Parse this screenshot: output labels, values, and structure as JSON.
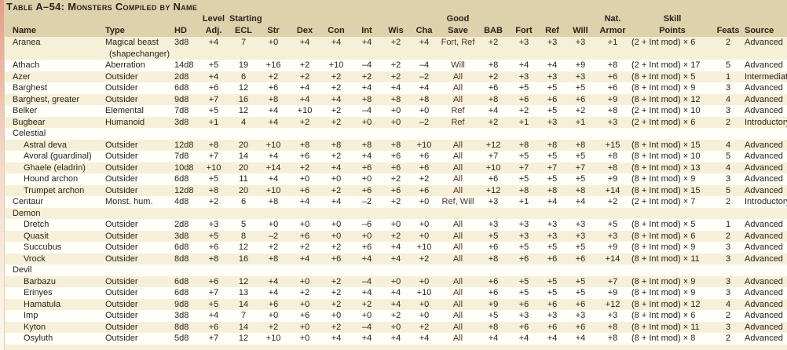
{
  "page": {
    "background_color": "#ded2ac",
    "row_cream_color": "#f7f0d9",
    "row_white_color": "#fffef8",
    "text_color": "#29221a"
  },
  "table": {
    "title": "Table A–54: Monsters Compiled by Name",
    "columns": [
      {
        "id": "name",
        "group": "",
        "label": "Name",
        "align": "left"
      },
      {
        "id": "type",
        "group": "",
        "label": "Type",
        "align": "left"
      },
      {
        "id": "hd",
        "group": "",
        "label": "HD",
        "align": "left"
      },
      {
        "id": "level_adj",
        "group": "Level",
        "label": "Adj.",
        "align": "center"
      },
      {
        "id": "ecl",
        "group": "Starting",
        "label": "ECL",
        "align": "center"
      },
      {
        "id": "str",
        "group": "",
        "label": "Str",
        "align": "center"
      },
      {
        "id": "dex",
        "group": "",
        "label": "Dex",
        "align": "center"
      },
      {
        "id": "con",
        "group": "",
        "label": "Con",
        "align": "center"
      },
      {
        "id": "int",
        "group": "",
        "label": "Int",
        "align": "center"
      },
      {
        "id": "wis",
        "group": "",
        "label": "Wis",
        "align": "center"
      },
      {
        "id": "cha",
        "group": "",
        "label": "Cha",
        "align": "center"
      },
      {
        "id": "save",
        "group": "Good",
        "label": "Save",
        "align": "center"
      },
      {
        "id": "bab",
        "group": "",
        "label": "BAB",
        "align": "center"
      },
      {
        "id": "fort",
        "group": "",
        "label": "Fort",
        "align": "center"
      },
      {
        "id": "ref",
        "group": "",
        "label": "Ref",
        "align": "center"
      },
      {
        "id": "will",
        "group": "",
        "label": "Will",
        "align": "center"
      },
      {
        "id": "nat_armor",
        "group": "Nat.",
        "label": "Armor",
        "align": "center"
      },
      {
        "id": "skill_points",
        "group": "Skill",
        "label": "Points",
        "align": "center"
      },
      {
        "id": "feats",
        "group": "",
        "label": "Feats",
        "align": "center"
      },
      {
        "id": "source",
        "group": "",
        "label": "Source",
        "align": "left"
      }
    ],
    "rows": [
      {
        "kind": "data",
        "name": "Aranea",
        "indent": false,
        "type": "Magical beast",
        "type2": "(shapechanger)",
        "hd": "3d8",
        "level_adj": "+4",
        "ecl": "7",
        "str": "+0",
        "dex": "+4",
        "con": "+4",
        "int": "+4",
        "wis": "+2",
        "cha": "+4",
        "save": "Fort, Ref",
        "bab": "+2",
        "fort": "+3",
        "ref": "+3",
        "will": "+3",
        "nat_armor": "+1",
        "skill_points": "(2 + Int mod) × 6",
        "feats": "2",
        "source": "Advanced"
      },
      {
        "kind": "data",
        "name": "Athach",
        "indent": false,
        "type": "Aberration",
        "hd": "14d8",
        "level_adj": "+5",
        "ecl": "19",
        "str": "+16",
        "dex": "+2",
        "con": "+10",
        "int": "–4",
        "wis": "+2",
        "cha": "–4",
        "save": "Will",
        "bab": "+8",
        "fort": "+4",
        "ref": "+4",
        "will": "+9",
        "nat_armor": "+8",
        "skill_points": "(2 + Int mod) × 17",
        "feats": "5",
        "source": "Advanced"
      },
      {
        "kind": "data",
        "name": "Azer",
        "indent": false,
        "type": "Outsider",
        "hd": "2d8",
        "level_adj": "+4",
        "ecl": "6",
        "str": "+2",
        "dex": "+2",
        "con": "+2",
        "int": "+2",
        "wis": "+2",
        "cha": "–2",
        "save": "All",
        "bab": "+2",
        "fort": "+3",
        "ref": "+3",
        "will": "+3",
        "nat_armor": "+6",
        "skill_points": "(8 + Int mod) × 5",
        "feats": "1",
        "source": "Intermediate"
      },
      {
        "kind": "data",
        "name": "Barghest",
        "indent": false,
        "type": "Outsider",
        "hd": "6d8",
        "level_adj": "+6",
        "ecl": "12",
        "str": "+6",
        "dex": "+4",
        "con": "+2",
        "int": "+4",
        "wis": "+4",
        "cha": "+4",
        "save": "All",
        "bab": "+6",
        "fort": "+5",
        "ref": "+5",
        "will": "+5",
        "nat_armor": "+6",
        "skill_points": "(8 + Int mod) × 9",
        "feats": "3",
        "source": "Advanced"
      },
      {
        "kind": "data",
        "name": "Barghest, greater",
        "indent": false,
        "type": "Outsider",
        "hd": "9d8",
        "level_adj": "+7",
        "ecl": "16",
        "str": "+8",
        "dex": "+4",
        "con": "+4",
        "int": "+8",
        "wis": "+8",
        "cha": "+8",
        "save": "All",
        "bab": "+8",
        "fort": "+6",
        "ref": "+6",
        "will": "+6",
        "nat_armor": "+9",
        "skill_points": "(8 + Int mod) × 12",
        "feats": "4",
        "source": "Advanced"
      },
      {
        "kind": "data",
        "name": "Belker",
        "indent": false,
        "type": "Elemental",
        "hd": "7d8",
        "level_adj": "+5",
        "ecl": "12",
        "str": "+4",
        "dex": "+10",
        "con": "+2",
        "int": "–4",
        "wis": "+0",
        "cha": "+0",
        "save": "Ref",
        "bab": "+4",
        "fort": "+2",
        "ref": "+5",
        "will": "+2",
        "nat_armor": "+8",
        "skill_points": "(2 + Int mod) × 10",
        "feats": "3",
        "source": "Advanced"
      },
      {
        "kind": "data",
        "name": "Bugbear",
        "indent": false,
        "type": "Humanoid",
        "hd": "3d8",
        "level_adj": "+1",
        "ecl": "4",
        "str": "+4",
        "dex": "+2",
        "con": "+2",
        "int": "+0",
        "wis": "+0",
        "cha": "–2",
        "save": "Ref",
        "bab": "+2",
        "fort": "+1",
        "ref": "+3",
        "will": "+1",
        "nat_armor": "+3",
        "skill_points": "(2 + Int mod) × 6",
        "feats": "2",
        "source": "Introductory"
      },
      {
        "kind": "section",
        "name": "Celestial"
      },
      {
        "kind": "data",
        "name": "Astral deva",
        "indent": true,
        "type": "Outsider",
        "hd": "12d8",
        "level_adj": "+8",
        "ecl": "20",
        "str": "+10",
        "dex": "+8",
        "con": "+8",
        "int": "+8",
        "wis": "+8",
        "cha": "+10",
        "save": "All",
        "bab": "+12",
        "fort": "+8",
        "ref": "+8",
        "will": "+8",
        "nat_armor": "+15",
        "skill_points": "(8 + Int mod) × 15",
        "feats": "4",
        "source": "Advanced"
      },
      {
        "kind": "data",
        "name": "Avoral (guardinal)",
        "indent": true,
        "type": "Outsider",
        "hd": "7d8",
        "level_adj": "+7",
        "ecl": "14",
        "str": "+4",
        "dex": "+6",
        "con": "+2",
        "int": "+4",
        "wis": "+6",
        "cha": "+6",
        "save": "All",
        "bab": "+7",
        "fort": "+5",
        "ref": "+5",
        "will": "+5",
        "nat_armor": "+8",
        "skill_points": "(8 + Int mod) × 10",
        "feats": "5",
        "source": "Advanced"
      },
      {
        "kind": "data",
        "name": "Ghaele (eladrin)",
        "indent": true,
        "type": "Outsider",
        "hd": "10d8",
        "level_adj": "+10",
        "ecl": "20",
        "str": "+14",
        "dex": "+2",
        "con": "+4",
        "int": "+6",
        "wis": "+6",
        "cha": "+6",
        "save": "All",
        "bab": "+10",
        "fort": "+7",
        "ref": "+7",
        "will": "+7",
        "nat_armor": "+8",
        "skill_points": "(8 + Int mod) × 13",
        "feats": "4",
        "source": "Advanced"
      },
      {
        "kind": "data",
        "name": "Hound archon",
        "indent": true,
        "type": "Outsider",
        "hd": "6d8",
        "level_adj": "+5",
        "ecl": "11",
        "str": "+4",
        "dex": "+0",
        "con": "+0",
        "int": "+0",
        "wis": "+2",
        "cha": "+2",
        "save": "All",
        "bab": "+6",
        "fort": "+5",
        "ref": "+5",
        "will": "+5",
        "nat_armor": "+9",
        "skill_points": "(8 + Int mod) × 9",
        "feats": "3",
        "source": "Advanced"
      },
      {
        "kind": "data",
        "name": "Trumpet archon",
        "indent": true,
        "type": "Outsider",
        "hd": "12d8",
        "level_adj": "+8",
        "ecl": "20",
        "str": "+10",
        "dex": "+6",
        "con": "+2",
        "int": "+6",
        "wis": "+6",
        "cha": "+6",
        "save": "All",
        "bab": "+12",
        "fort": "+8",
        "ref": "+8",
        "will": "+8",
        "nat_armor": "+14",
        "skill_points": "(8 + Int mod) × 15",
        "feats": "5",
        "source": "Advanced"
      },
      {
        "kind": "data",
        "name": "Centaur",
        "indent": false,
        "type": "Monst. hum.",
        "hd": "4d8",
        "level_adj": "+2",
        "ecl": "6",
        "str": "+8",
        "dex": "+4",
        "con": "+4",
        "int": "–2",
        "wis": "+2",
        "cha": "+0",
        "save": "Ref, Will",
        "bab": "+3",
        "fort": "+1",
        "ref": "+4",
        "will": "+4",
        "nat_armor": "+2",
        "skill_points": "(2 + Int mod) × 7",
        "feats": "2",
        "source": "Introductory"
      },
      {
        "kind": "section",
        "name": "Demon"
      },
      {
        "kind": "data",
        "name": "Dretch",
        "indent": true,
        "type": "Outsider",
        "hd": "2d8",
        "level_adj": "+3",
        "ecl": "5",
        "str": "+0",
        "dex": "+0",
        "con": "+0",
        "int": "–6",
        "wis": "+0",
        "cha": "+0",
        "save": "All",
        "bab": "+3",
        "fort": "+3",
        "ref": "+3",
        "will": "+3",
        "nat_armor": "+5",
        "skill_points": "(8 + Int mod) × 5",
        "feats": "1",
        "source": "Advanced"
      },
      {
        "kind": "data",
        "name": "Quasit",
        "indent": true,
        "type": "Outsider",
        "hd": "3d8",
        "level_adj": "+5",
        "ecl": "8",
        "str": "–2",
        "dex": "+6",
        "con": "+0",
        "int": "+0",
        "wis": "+2",
        "cha": "+0",
        "save": "All",
        "bab": "+5",
        "fort": "+3",
        "ref": "+3",
        "will": "+3",
        "nat_armor": "+3",
        "skill_points": "(8 + Int mod) × 6",
        "feats": "2",
        "source": "Advanced"
      },
      {
        "kind": "data",
        "name": "Succubus",
        "indent": true,
        "type": "Outsider",
        "hd": "6d8",
        "level_adj": "+6",
        "ecl": "12",
        "str": "+2",
        "dex": "+2",
        "con": "+2",
        "int": "+6",
        "wis": "+4",
        "cha": "+10",
        "save": "All",
        "bab": "+6",
        "fort": "+5",
        "ref": "+5",
        "will": "+5",
        "nat_armor": "+9",
        "skill_points": "(8 + Int mod) × 9",
        "feats": "3",
        "source": "Advanced"
      },
      {
        "kind": "data",
        "name": "Vrock",
        "indent": true,
        "type": "Outsider",
        "hd": "8d8",
        "level_adj": "+8",
        "ecl": "16",
        "str": "+8",
        "dex": "+4",
        "con": "+6",
        "int": "+4",
        "wis": "+4",
        "cha": "+2",
        "save": "All",
        "bab": "+8",
        "fort": "+6",
        "ref": "+6",
        "will": "+6",
        "nat_armor": "+14",
        "skill_points": "(8 + Int mod) × 11",
        "feats": "3",
        "source": "Advanced"
      },
      {
        "kind": "section",
        "name": "Devil"
      },
      {
        "kind": "data",
        "name": "Barbazu",
        "indent": true,
        "type": "Outsider",
        "hd": "6d8",
        "level_adj": "+6",
        "ecl": "12",
        "str": "+4",
        "dex": "+0",
        "con": "+2",
        "int": "–4",
        "wis": "+0",
        "cha": "+0",
        "save": "All",
        "bab": "+6",
        "fort": "+5",
        "ref": "+5",
        "will": "+5",
        "nat_armor": "+7",
        "skill_points": "(8 + Int mod) × 9",
        "feats": "3",
        "source": "Advanced"
      },
      {
        "kind": "data",
        "name": "Erinyes",
        "indent": true,
        "type": "Outsider",
        "hd": "6d8",
        "level_adj": "+7",
        "ecl": "13",
        "str": "+4",
        "dex": "+2",
        "con": "+2",
        "int": "+4",
        "wis": "+4",
        "cha": "+10",
        "save": "All",
        "bab": "+6",
        "fort": "+5",
        "ref": "+5",
        "will": "+5",
        "nat_armor": "+9",
        "skill_points": "(8 + Int mod) × 9",
        "feats": "3",
        "source": "Advanced"
      },
      {
        "kind": "data",
        "name": "Hamatula",
        "indent": true,
        "type": "Outsider",
        "hd": "9d8",
        "level_adj": "+5",
        "ecl": "14",
        "str": "+6",
        "dex": "+0",
        "con": "+2",
        "int": "+2",
        "wis": "+4",
        "cha": "+0",
        "save": "All",
        "bab": "+9",
        "fort": "+6",
        "ref": "+6",
        "will": "+6",
        "nat_armor": "+12",
        "skill_points": "(8 + Int mod) × 12",
        "feats": "4",
        "source": "Advanced"
      },
      {
        "kind": "data",
        "name": "Imp",
        "indent": true,
        "type": "Outsider",
        "hd": "3d8",
        "level_adj": "+4",
        "ecl": "7",
        "str": "+0",
        "dex": "+6",
        "con": "+0",
        "int": "+0",
        "wis": "+2",
        "cha": "+0",
        "save": "All",
        "bab": "+5",
        "fort": "+3",
        "ref": "+3",
        "will": "+3",
        "nat_armor": "+3",
        "skill_points": "(8 + Int mod) × 6",
        "feats": "2",
        "source": "Advanced"
      },
      {
        "kind": "data",
        "name": "Kyton",
        "indent": true,
        "type": "Outsider",
        "hd": "8d8",
        "level_adj": "+6",
        "ecl": "14",
        "str": "+2",
        "dex": "+0",
        "con": "+2",
        "int": "–4",
        "wis": "+0",
        "cha": "+2",
        "save": "All",
        "bab": "+8",
        "fort": "+6",
        "ref": "+6",
        "will": "+6",
        "nat_armor": "+8",
        "skill_points": "(8 + Int mod) × 11",
        "feats": "3",
        "source": "Advanced"
      },
      {
        "kind": "data",
        "name": "Osyluth",
        "indent": true,
        "type": "Outsider",
        "hd": "5d8",
        "level_adj": "+7",
        "ecl": "12",
        "str": "+10",
        "dex": "+0",
        "con": "+4",
        "int": "+4",
        "wis": "+4",
        "cha": "+4",
        "save": "All",
        "bab": "+4",
        "fort": "+4",
        "ref": "+4",
        "will": "+4",
        "nat_armor": "+8",
        "skill_points": "(8 + Int mod) × 8",
        "feats": "2",
        "source": "Advanced"
      }
    ]
  }
}
